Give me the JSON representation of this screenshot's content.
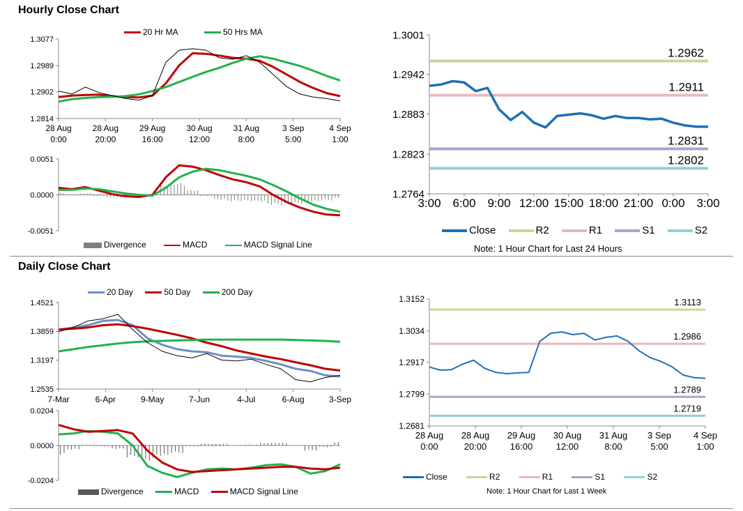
{
  "titles": {
    "hourly": "Hourly Close Chart",
    "daily": "Daily Close Chart"
  },
  "colors": {
    "red": "#c00000",
    "green": "#22b14c",
    "blue": "#1f6fb5",
    "steel": "#6a8ec8",
    "r2": "#c4d79b",
    "r1": "#e6b9b8",
    "s1": "#b1a0c7",
    "s2": "#92cddc",
    "bar": "#7f7f7f"
  },
  "chart_data": [
    {
      "id": "hourly_price",
      "type": "line",
      "title": "Hourly Close Chart",
      "yticks": [
        "1.3077",
        "1.2989",
        "1.2902",
        "1.2814"
      ],
      "ylim": [
        1.2814,
        1.3077
      ],
      "xticks": [
        [
          "28 Aug",
          "0:00"
        ],
        [
          "28 Aug",
          "20:00"
        ],
        [
          "29 Aug",
          "16:00"
        ],
        [
          "30 Aug",
          "12:00"
        ],
        [
          "31 Aug",
          "8:00"
        ],
        [
          "3 Sep",
          "5:00"
        ],
        [
          "4 Sep",
          "1:00"
        ]
      ],
      "legend": [
        "20 Hr MA",
        "50 Hrs MA"
      ],
      "series": [
        {
          "name": "20 Hr MA",
          "values": [
            1.2885,
            1.289,
            1.2892,
            1.2893,
            1.2888,
            1.2885,
            1.2884,
            1.289,
            1.293,
            1.299,
            1.303,
            1.3028,
            1.3022,
            1.3015,
            1.3012,
            1.3005,
            1.2985,
            1.296,
            1.2935,
            1.2915,
            1.2898,
            1.2888
          ]
        },
        {
          "name": "50 Hrs MA",
          "values": [
            1.287,
            1.2878,
            1.2882,
            1.2885,
            1.2886,
            1.2888,
            1.2894,
            1.2905,
            1.2918,
            1.2935,
            1.2952,
            1.2968,
            1.2982,
            1.2998,
            1.3012,
            1.302,
            1.3012,
            1.3,
            1.2988,
            1.2972,
            1.2955,
            1.294
          ]
        },
        {
          "name": "Close",
          "values": [
            1.2905,
            1.2895,
            1.2918,
            1.29,
            1.289,
            1.288,
            1.2875,
            1.289,
            1.3,
            1.304,
            1.3045,
            1.304,
            1.3015,
            1.301,
            1.3022,
            1.3,
            1.296,
            1.292,
            1.2895,
            1.2885,
            1.288,
            1.2872
          ]
        }
      ]
    },
    {
      "id": "hourly_macd",
      "type": "line",
      "yticks": [
        "0.0051",
        "0.0000",
        "-0.0051"
      ],
      "ylim": [
        -0.0051,
        0.0051
      ],
      "legend": [
        "Divergence",
        "MACD",
        "MACD Signal Line"
      ],
      "series": [
        {
          "name": "MACD",
          "values": [
            0.001,
            0.0008,
            0.0011,
            0.0006,
            0.0001,
            -0.0002,
            -0.0003,
            0.0,
            0.0025,
            0.0042,
            0.004,
            0.0035,
            0.0028,
            0.0022,
            0.0018,
            0.0012,
            0.0,
            -0.001,
            -0.0018,
            -0.0024,
            -0.0028,
            -0.0029
          ]
        },
        {
          "name": "MACD Signal Line",
          "values": [
            0.0007,
            0.0007,
            0.0009,
            0.0008,
            0.0005,
            0.0002,
            0.0,
            -0.0001,
            0.001,
            0.0025,
            0.0033,
            0.0037,
            0.0035,
            0.0031,
            0.0027,
            0.0022,
            0.0014,
            0.0005,
            -0.0005,
            -0.0014,
            -0.002,
            -0.0024
          ]
        },
        {
          "name": "Divergence",
          "values": [
            0.0003,
            0.0001,
            0.0002,
            -0.0002,
            -0.0004,
            -0.0004,
            -0.0003,
            0.0001,
            0.0015,
            0.0017,
            0.0007,
            -0.0002,
            -0.0007,
            -0.0009,
            -0.0009,
            -0.001,
            -0.0014,
            -0.0015,
            -0.0013,
            -0.001,
            -0.0008,
            -0.0005
          ]
        }
      ]
    },
    {
      "id": "hourly_24h",
      "type": "line",
      "yticks": [
        "1.3001",
        "1.2942",
        "1.2883",
        "1.2823",
        "1.2764"
      ],
      "ylim": [
        1.2764,
        1.3001
      ],
      "xticks": [
        "3:00",
        "6:00",
        "9:00",
        "12:00",
        "15:00",
        "18:00",
        "21:00",
        "0:00",
        "3:00"
      ],
      "note": "Note: 1 Hour Chart for Last 24 Hours",
      "legend": [
        "Close",
        "R2",
        "R1",
        "S1",
        "S2"
      ],
      "levels": [
        {
          "name": "R2",
          "value": 1.2962,
          "label": "1.2962"
        },
        {
          "name": "R1",
          "value": 1.2911,
          "label": "1.2911"
        },
        {
          "name": "S1",
          "value": 1.2831,
          "label": "1.2831"
        },
        {
          "name": "S2",
          "value": 1.2802,
          "label": "1.2802"
        }
      ],
      "series": [
        {
          "name": "Close",
          "values": [
            1.2925,
            1.2927,
            1.2932,
            1.293,
            1.2917,
            1.2922,
            1.289,
            1.2874,
            1.2886,
            1.287,
            1.2863,
            1.288,
            1.2882,
            1.2884,
            1.2881,
            1.2876,
            1.288,
            1.2877,
            1.2877,
            1.2875,
            1.2876,
            1.287,
            1.2866,
            1.2864,
            1.2864
          ]
        }
      ]
    },
    {
      "id": "daily_price",
      "type": "line",
      "title": "Daily Close Chart",
      "yticks": [
        "1.4521",
        "1.3859",
        "1.3197",
        "1.2535"
      ],
      "ylim": [
        1.2535,
        1.4521
      ],
      "xticks": [
        "7-Mar",
        "6-Apr",
        "9-May",
        "7-Jun",
        "4-Jul",
        "6-Aug",
        "3-Sep"
      ],
      "legend": [
        "20 Day",
        "50 Day",
        "200 Day"
      ],
      "series": [
        {
          "name": "20 Day",
          "values": [
            1.39,
            1.395,
            1.4,
            1.41,
            1.412,
            1.4,
            1.37,
            1.355,
            1.345,
            1.34,
            1.338,
            1.33,
            1.328,
            1.325,
            1.318,
            1.31,
            1.3,
            1.295,
            1.285,
            1.282
          ]
        },
        {
          "name": "50 Day",
          "values": [
            1.39,
            1.392,
            1.395,
            1.4,
            1.402,
            1.398,
            1.392,
            1.385,
            1.378,
            1.37,
            1.36,
            1.352,
            1.342,
            1.335,
            1.328,
            1.322,
            1.315,
            1.308,
            1.3,
            1.296
          ]
        },
        {
          "name": "200 Day",
          "values": [
            1.34,
            1.345,
            1.35,
            1.354,
            1.358,
            1.361,
            1.363,
            1.364,
            1.365,
            1.366,
            1.367,
            1.367,
            1.367,
            1.367,
            1.367,
            1.367,
            1.366,
            1.365,
            1.364,
            1.362
          ]
        },
        {
          "name": "Close",
          "values": [
            1.385,
            1.395,
            1.41,
            1.415,
            1.425,
            1.39,
            1.36,
            1.34,
            1.33,
            1.325,
            1.335,
            1.32,
            1.318,
            1.322,
            1.31,
            1.3,
            1.275,
            1.27,
            1.28,
            1.285
          ]
        }
      ]
    },
    {
      "id": "daily_macd",
      "type": "line",
      "yticks": [
        "0.0204",
        "0.0000",
        "-0.0204"
      ],
      "ylim": [
        -0.0204,
        0.0204
      ],
      "legend": [
        "Divergence",
        "MACD",
        "MACD Signal Line"
      ],
      "series": [
        {
          "name": "MACD",
          "values": [
            0.0065,
            0.007,
            0.0085,
            0.008,
            0.007,
            0.0,
            -0.012,
            -0.016,
            -0.0185,
            -0.016,
            -0.014,
            -0.0135,
            -0.014,
            -0.013,
            -0.0115,
            -0.011,
            -0.0125,
            -0.0165,
            -0.015,
            -0.011
          ]
        },
        {
          "name": "MACD Signal Line",
          "values": [
            0.012,
            0.0095,
            0.008,
            0.0085,
            0.009,
            0.007,
            -0.003,
            -0.01,
            -0.014,
            -0.0155,
            -0.015,
            -0.0145,
            -0.014,
            -0.0135,
            -0.013,
            -0.0125,
            -0.0125,
            -0.0135,
            -0.014,
            -0.013
          ]
        },
        {
          "name": "Divergence",
          "values": [
            -0.0055,
            -0.0025,
            0.0005,
            -0.0005,
            -0.002,
            -0.007,
            -0.009,
            -0.006,
            -0.0045,
            -0.0005,
            0.001,
            0.001,
            0.0,
            0.0005,
            0.0015,
            0.0015,
            0.0,
            -0.003,
            -0.001,
            0.002
          ]
        }
      ]
    },
    {
      "id": "hourly_week",
      "type": "line",
      "yticks": [
        "1.3152",
        "1.3034",
        "1.2917",
        "1.2799",
        "1.2681"
      ],
      "ylim": [
        1.2681,
        1.3152
      ],
      "xticks": [
        [
          "28 Aug",
          "0:00"
        ],
        [
          "28 Aug",
          "20:00"
        ],
        [
          "29 Aug",
          "16:00"
        ],
        [
          "30 Aug",
          "12:00"
        ],
        [
          "31 Aug",
          "8:00"
        ],
        [
          "3 Sep",
          "5:00"
        ],
        [
          "4 Sep",
          "1:00"
        ]
      ],
      "note": "Note: 1 Hour Chart for Last 1 Week",
      "legend": [
        "Close",
        "R2",
        "R1",
        "S1",
        "S2"
      ],
      "levels": [
        {
          "name": "R2",
          "value": 1.3113,
          "label": "1.3113"
        },
        {
          "name": "R1",
          "value": 1.2986,
          "label": "1.2986"
        },
        {
          "name": "S1",
          "value": 1.2789,
          "label": "1.2789"
        },
        {
          "name": "S2",
          "value": 1.2719,
          "label": "1.2719"
        }
      ],
      "series": [
        {
          "name": "Close",
          "values": [
            1.29,
            1.2888,
            1.289,
            1.291,
            1.2925,
            1.2895,
            1.288,
            1.2875,
            1.2878,
            1.288,
            1.2995,
            1.3025,
            1.303,
            1.302,
            1.3025,
            1.3,
            1.301,
            1.3015,
            1.2995,
            1.296,
            1.2935,
            1.292,
            1.29,
            1.287,
            1.286,
            1.2858
          ]
        }
      ]
    }
  ]
}
